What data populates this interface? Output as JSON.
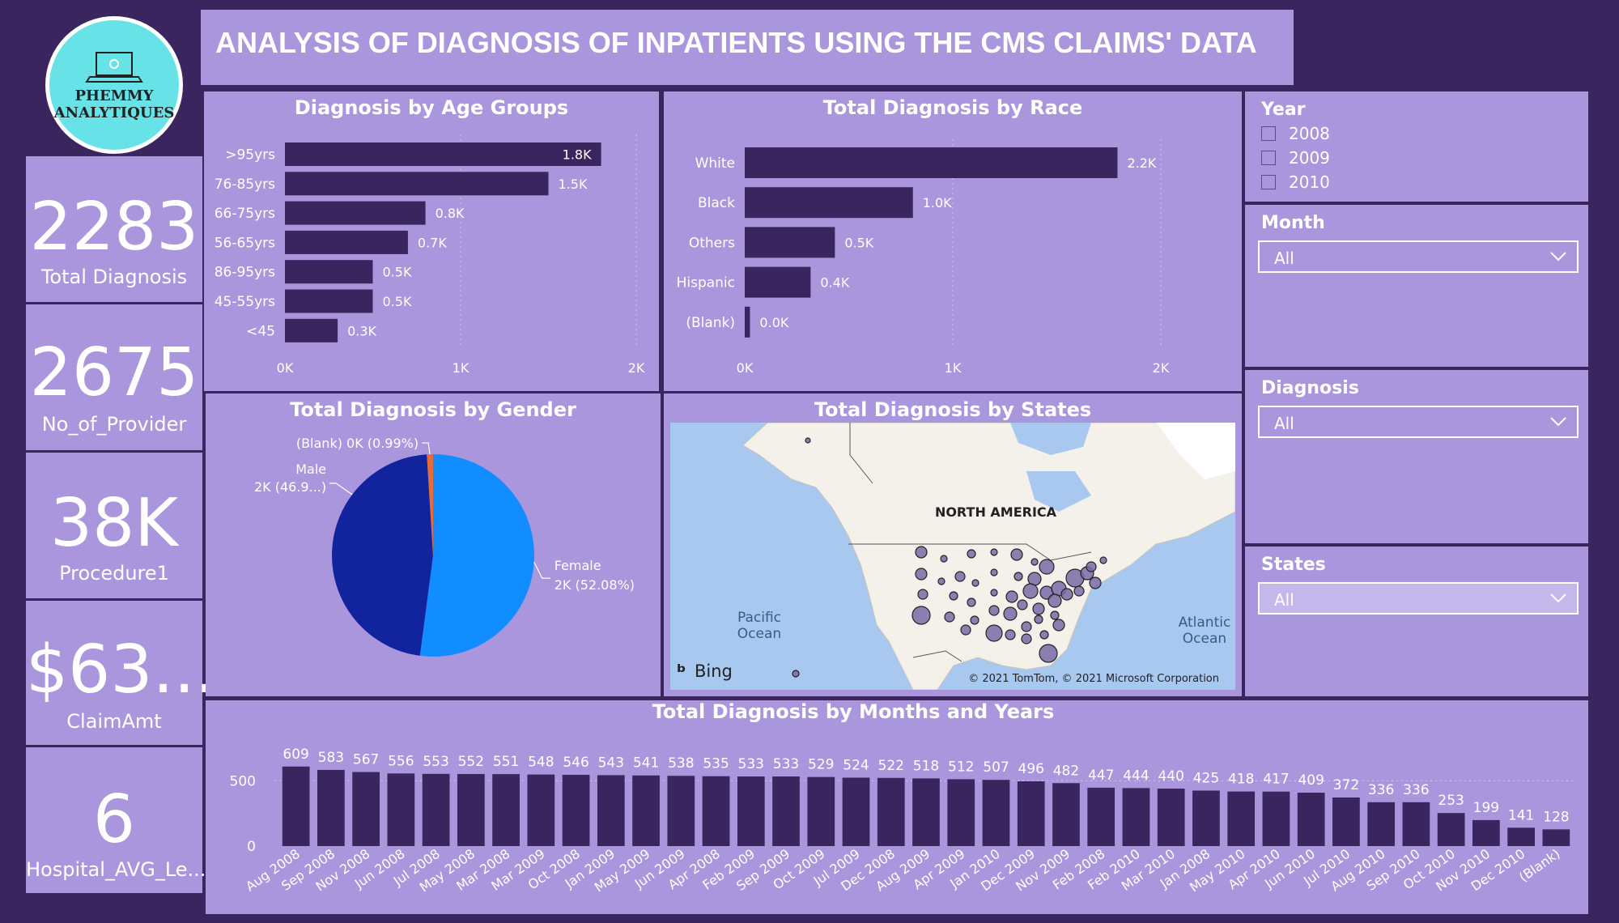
{
  "header": {
    "title": "ANALYSIS OF DIAGNOSIS OF INPATIENTS USING THE CMS CLAIMS' DATA",
    "logo_line1": "PHEMMY",
    "logo_line2": "ANALYTIQUES"
  },
  "kpis": [
    {
      "value": "2283",
      "label": "Total Diagnosis"
    },
    {
      "value": "2675",
      "label": "No_of_Provider"
    },
    {
      "value": "38K",
      "label": "Procedure1"
    },
    {
      "value": "$63...",
      "label": "ClaimAmt"
    },
    {
      "value": "6",
      "label": "Hospital_AVG_Le..."
    }
  ],
  "slicers": {
    "year": {
      "title": "Year",
      "options": [
        "2008",
        "2009",
        "2010"
      ]
    },
    "month": {
      "title": "Month",
      "selected": "All"
    },
    "diagnosis": {
      "title": "Diagnosis",
      "selected": "All"
    },
    "states": {
      "title": "States",
      "selected": "All"
    }
  },
  "map": {
    "title": "Total Diagnosis by States",
    "continent_label": "NORTH AMERICA",
    "pacific_label_1": "Pacific",
    "pacific_label_2": "Ocean",
    "atlantic_label_1": "Atlantic",
    "atlantic_label_2": "Ocean",
    "bing": "Bing",
    "copyright": "© 2021 TomTom, © 2021 Microsoft Corporation"
  },
  "colors": {
    "background": "#3a255f",
    "panel": "#a996dc",
    "bar": "#3a255f",
    "female": "#118dff",
    "male": "#12239e",
    "blank": "#e66c37"
  },
  "chart_data": [
    {
      "id": "age",
      "type": "bar",
      "orientation": "horizontal",
      "title": "Diagnosis by Age Groups",
      "categories": [
        ">95yrs",
        "76-85yrs",
        "66-75yrs",
        "56-65yrs",
        "86-95yrs",
        "45-55yrs",
        "<45"
      ],
      "values": [
        1.8,
        1.5,
        0.8,
        0.7,
        0.5,
        0.5,
        0.3
      ],
      "data_labels": [
        "1.8K",
        "1.5K",
        "0.8K",
        "0.7K",
        "0.5K",
        "0.5K",
        "0.3K"
      ],
      "xticks": [
        "0K",
        "1K",
        "2K"
      ],
      "xlim": [
        0,
        2
      ]
    },
    {
      "id": "race",
      "type": "bar",
      "orientation": "horizontal",
      "title": "Total Diagnosis by Race",
      "categories": [
        "White",
        "Black",
        "Others",
        "Hispanic",
        "(Blank)"
      ],
      "values": [
        2.15,
        0.97,
        0.52,
        0.38,
        0.03
      ],
      "data_labels": [
        "2.2K",
        "1.0K",
        "0.5K",
        "0.4K",
        "0.0K"
      ],
      "xticks": [
        "0K",
        "1K",
        "2K"
      ],
      "xlim": [
        0,
        2.4
      ]
    },
    {
      "id": "gender",
      "type": "pie",
      "title": "Total Diagnosis by Gender",
      "slices": [
        {
          "label": "Female",
          "value": 52.08,
          "text": "2K (52.08%)"
        },
        {
          "label": "Male",
          "value": 46.93,
          "text": "2K (46.9...)"
        },
        {
          "label": "(Blank)",
          "value": 0.99,
          "text": "0K (0.99%)"
        }
      ]
    },
    {
      "id": "months",
      "type": "bar",
      "title": "Total Diagnosis by Months and Years",
      "categories": [
        "Aug 2008",
        "Sep 2008",
        "Nov 2008",
        "Jun 2008",
        "Jul 2008",
        "May 2008",
        "Mar 2008",
        "Mar 2009",
        "Oct 2008",
        "Jan 2009",
        "May 2009",
        "Jun 2009",
        "Apr 2008",
        "Feb 2009",
        "Sep 2009",
        "Oct 2009",
        "Jul 2009",
        "Dec 2008",
        "Aug 2009",
        "Apr 2009",
        "Jan 2010",
        "Dec 2009",
        "Nov 2009",
        "Feb 2008",
        "Feb 2010",
        "Mar 2010",
        "Jan 2008",
        "May 2010",
        "Apr 2010",
        "Jun 2010",
        "Jul 2010",
        "Aug 2010",
        "Sep 2010",
        "Oct 2010",
        "Nov 2010",
        "Dec 2010",
        "(Blank)"
      ],
      "values": [
        609,
        583,
        567,
        556,
        553,
        552,
        551,
        548,
        546,
        543,
        541,
        538,
        535,
        533,
        533,
        529,
        524,
        522,
        518,
        512,
        507,
        496,
        482,
        447,
        444,
        440,
        425,
        418,
        417,
        409,
        372,
        336,
        336,
        253,
        199,
        141,
        128
      ],
      "yticks": [
        0,
        500
      ],
      "ylim": [
        0,
        620
      ]
    }
  ]
}
